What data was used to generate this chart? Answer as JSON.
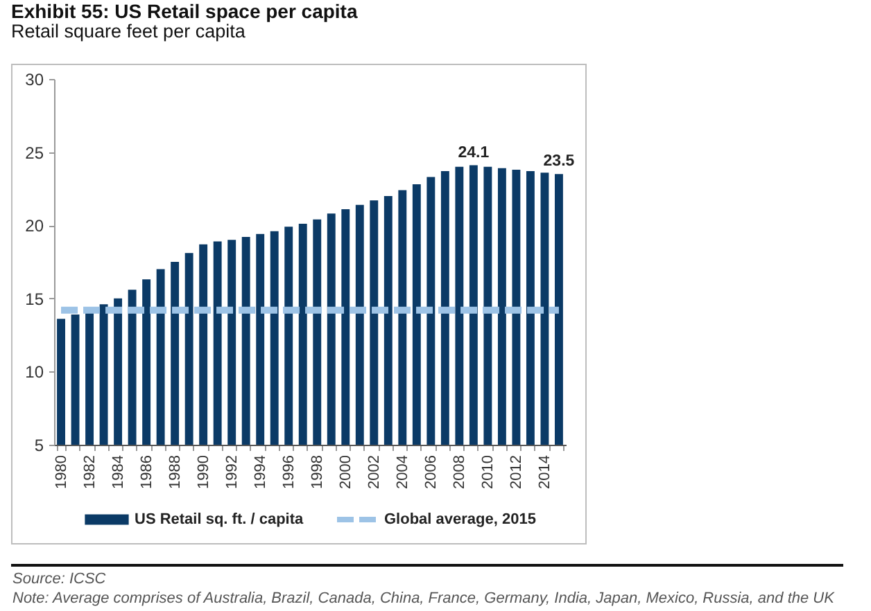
{
  "chart_data": {
    "type": "bar",
    "title": "Exhibit 55: US Retail space per capita",
    "subtitle": "Retail square feet per capita",
    "categories": [
      "1980",
      null,
      "1982",
      null,
      "1984",
      null,
      "1986",
      null,
      "1988",
      null,
      "1990",
      null,
      "1992",
      null,
      "1994",
      null,
      "1996",
      null,
      "1998",
      null,
      "2000",
      null,
      "2002",
      null,
      "2004",
      null,
      "2006",
      null,
      "2008",
      null,
      "2010",
      null,
      "2012",
      null,
      "2014",
      null
    ],
    "series": [
      {
        "name": "US Retail sq. ft. / capita",
        "color": "#0b3a66",
        "values": [
          13.6,
          13.9,
          14.3,
          14.6,
          15.0,
          15.6,
          16.3,
          17.0,
          17.5,
          18.1,
          18.7,
          18.9,
          19.0,
          19.2,
          19.4,
          19.6,
          19.9,
          20.1,
          20.4,
          20.8,
          21.1,
          21.4,
          21.7,
          22.0,
          22.4,
          22.8,
          23.3,
          23.7,
          24.0,
          24.1,
          24.0,
          23.9,
          23.8,
          23.7,
          23.6,
          23.5
        ],
        "value_labels": [
          null,
          null,
          null,
          null,
          null,
          null,
          null,
          null,
          null,
          null,
          null,
          null,
          null,
          null,
          null,
          null,
          null,
          null,
          null,
          null,
          null,
          null,
          null,
          null,
          null,
          null,
          null,
          null,
          null,
          "24.1",
          null,
          null,
          null,
          null,
          null,
          "23.5"
        ]
      },
      {
        "name": "Global average, 2015",
        "type": "line",
        "color": "#9dc3e6",
        "values": [
          14.2,
          14.2,
          14.2,
          14.2,
          14.2,
          14.2,
          14.2,
          14.2,
          14.2,
          14.2,
          14.2,
          14.2,
          14.2,
          14.2,
          14.2,
          14.2,
          14.2,
          14.2,
          14.2,
          14.2,
          14.2,
          14.2,
          14.2,
          14.2,
          14.2,
          14.2,
          14.2,
          14.2,
          14.2,
          14.2,
          14.2,
          14.2,
          14.2,
          14.2,
          14.2,
          14.2
        ]
      }
    ],
    "ylim": [
      5,
      30
    ],
    "yticks": [
      5,
      10,
      15,
      20,
      25,
      30
    ],
    "grid": false,
    "legend": "bottom",
    "line_style": "dashed",
    "annotations": [
      "Source: ICSC",
      "Note: Average comprises of Australia, Brazil, Canada, China, France, Germany, India, Japan, Mexico, Russia, and the UK"
    ]
  }
}
